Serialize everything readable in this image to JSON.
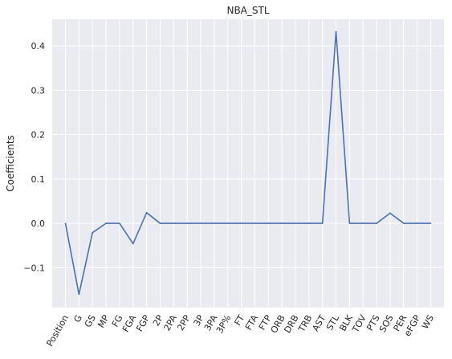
{
  "chart_data": {
    "type": "line",
    "title": "NBA_STL",
    "xlabel": "",
    "ylabel": "Coefficients",
    "grid": true,
    "ylim": [
      -0.19,
      0.46
    ],
    "yticks": [
      -0.1,
      0.0,
      0.1,
      0.2,
      0.3,
      0.4
    ],
    "ytick_labels": [
      "−0.1",
      "0.0",
      "0.1",
      "0.2",
      "0.3",
      "0.4"
    ],
    "categories": [
      "Position",
      "G",
      "GS",
      "MP",
      "FG",
      "FGA",
      "FGP",
      "2P",
      "2PA",
      "2PP",
      "3P",
      "3PA",
      "3P%",
      "FT",
      "FTA",
      "FTP",
      "ORB",
      "DRB",
      "TRB",
      "AST",
      "STL",
      "BLK",
      "TOV",
      "PTS",
      "SOS",
      "PER",
      "eFGP",
      "WS"
    ],
    "series": [
      {
        "color": "#4c72b0",
        "values": [
          0.0,
          -0.16,
          -0.021,
          0.0,
          0.0,
          -0.046,
          0.024,
          0.0,
          0.0,
          0.0,
          0.0,
          0.0,
          0.0,
          0.0,
          0.0,
          0.0,
          0.0,
          0.0,
          0.0,
          0.0,
          0.432,
          0.0,
          0.0,
          0.0,
          0.023,
          0.0,
          0.0,
          0.0
        ]
      }
    ],
    "colors": {
      "plot_background": "#eaeaf2",
      "grid": "#ffffff",
      "line": "#4c72b0"
    }
  }
}
